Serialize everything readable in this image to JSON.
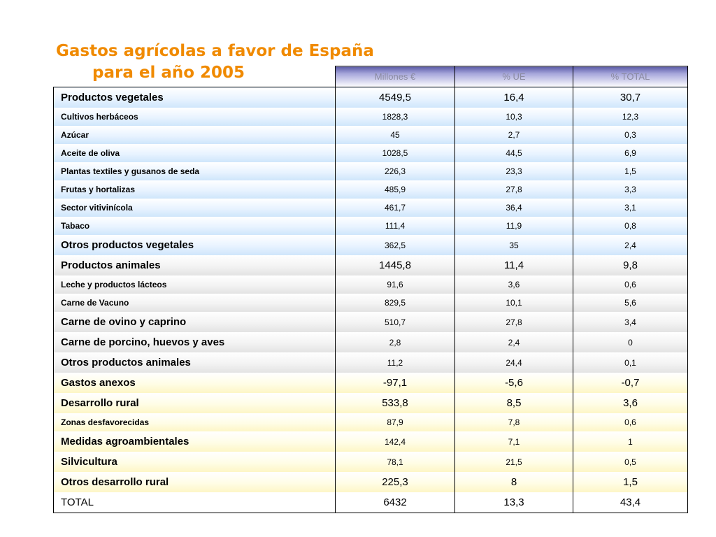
{
  "title": {
    "line1": "Gastos agrícolas a favor de España",
    "line2": "para el año 2005"
  },
  "colors": {
    "title": "#f08a00",
    "header_gradient_top": "#5c5ca8",
    "blue_band": "#cfe6fb",
    "grey_band": "#e3e3e3",
    "yellow_band": "#fdf6c6"
  },
  "table": {
    "headers": [
      "Millones €",
      "% UE",
      "% TOTAL"
    ],
    "rows": [
      {
        "label": "Productos vegetales",
        "values": [
          "4549,5",
          "16,4",
          "30,7"
        ],
        "size": "main",
        "band": "blue"
      },
      {
        "label": "Cultivos herbáceos",
        "values": [
          "1828,3",
          "10,3",
          "12,3"
        ],
        "size": "sub",
        "band": "blue"
      },
      {
        "label": "Azúcar",
        "values": [
          "45",
          "2,7",
          "0,3"
        ],
        "size": "sub",
        "band": "blue"
      },
      {
        "label": "Aceite de oliva",
        "values": [
          "1028,5",
          "44,5",
          "6,9"
        ],
        "size": "sub",
        "band": "blue"
      },
      {
        "label": "Plantas textiles y gusanos de seda",
        "values": [
          "226,3",
          "23,3",
          "1,5"
        ],
        "size": "sub",
        "band": "blue"
      },
      {
        "label": "Frutas y hortalizas",
        "values": [
          "485,9",
          "27,8",
          "3,3"
        ],
        "size": "sub",
        "band": "blue"
      },
      {
        "label": "Sector vitivinícola",
        "values": [
          "461,7",
          "36,4",
          "3,1"
        ],
        "size": "sub",
        "band": "blue"
      },
      {
        "label": "Tabaco",
        "values": [
          "111,4",
          "11,9",
          "0,8"
        ],
        "size": "sub",
        "band": "blue"
      },
      {
        "label": "Otros productos vegetales",
        "values": [
          "362,5",
          "35",
          "2,4"
        ],
        "size": "main-small",
        "band": "blue"
      },
      {
        "label": "Productos animales",
        "values": [
          "1445,8",
          "11,4",
          "9,8"
        ],
        "size": "main",
        "band": "grey"
      },
      {
        "label": "Leche y productos lácteos",
        "values": [
          "91,6",
          "3,6",
          "0,6"
        ],
        "size": "sub",
        "band": "grey"
      },
      {
        "label": "Carne de Vacuno",
        "values": [
          "829,5",
          "10,1",
          "5,6"
        ],
        "size": "sub",
        "band": "grey"
      },
      {
        "label": "Carne de ovino y caprino",
        "values": [
          "510,7",
          "27,8",
          "3,4"
        ],
        "size": "main-small",
        "band": "grey"
      },
      {
        "label": "Carne de porcino, huevos y aves",
        "values": [
          "2,8",
          "2,4",
          "0"
        ],
        "size": "main-small",
        "band": "grey"
      },
      {
        "label": "Otros productos animales",
        "values": [
          "11,2",
          "24,4",
          "0,1"
        ],
        "size": "main-small",
        "band": "grey"
      },
      {
        "label": "Gastos anexos",
        "values": [
          "-97,1",
          "-5,6",
          "-0,7"
        ],
        "size": "main",
        "band": "yellow"
      },
      {
        "label": "Desarrollo rural",
        "values": [
          "533,8",
          "8,5",
          "3,6"
        ],
        "size": "main",
        "band": "yellow"
      },
      {
        "label": "Zonas desfavorecidas",
        "values": [
          "87,9",
          "7,8",
          "0,6"
        ],
        "size": "sub",
        "band": "yellow"
      },
      {
        "label": "Medidas agroambientales",
        "values": [
          "142,4",
          "7,1",
          "1"
        ],
        "size": "main-small",
        "band": "yellow"
      },
      {
        "label": "Silvicultura",
        "values": [
          "78,1",
          "21,5",
          "0,5"
        ],
        "size": "main-small",
        "band": "yellow"
      },
      {
        "label": "Otros desarrollo rural",
        "values": [
          "225,3",
          "8",
          "1,5"
        ],
        "size": "main",
        "band": "yellow"
      },
      {
        "label": "TOTAL",
        "values": [
          "6432",
          "13,3",
          "43,4"
        ],
        "size": "main",
        "band": "total"
      }
    ]
  }
}
